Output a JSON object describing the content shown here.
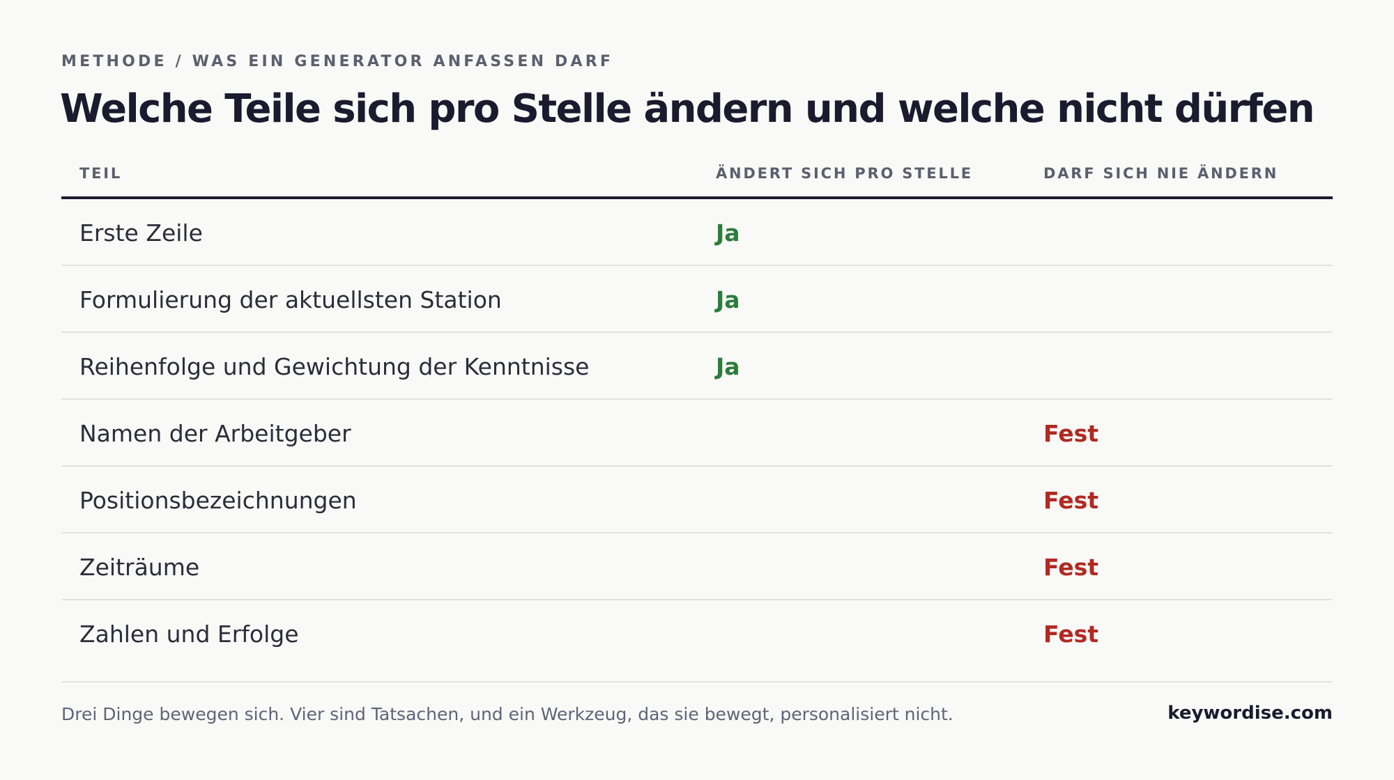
{
  "header": {
    "eyebrow": "METHODE / WAS EIN GENERATOR ANFASSEN DARF",
    "title": "Welche Teile sich pro Stelle ändern und welche nicht dürfen"
  },
  "table": {
    "columns": [
      "TEIL",
      "ÄNDERT SICH PRO STELLE",
      "DARF SICH NIE ÄNDERN"
    ],
    "rows": [
      {
        "part": "Erste Zeile",
        "changes": "Ja",
        "fixed": ""
      },
      {
        "part": "Formulierung der aktuellsten Station",
        "changes": "Ja",
        "fixed": ""
      },
      {
        "part": "Reihenfolge und Gewichtung der Kenntnisse",
        "changes": "Ja",
        "fixed": ""
      },
      {
        "part": "Namen der Arbeitgeber",
        "changes": "",
        "fixed": "Fest"
      },
      {
        "part": "Positionsbezeichnungen",
        "changes": "",
        "fixed": "Fest"
      },
      {
        "part": "Zeiträume",
        "changes": "",
        "fixed": "Fest"
      },
      {
        "part": "Zahlen und Erfolge",
        "changes": "",
        "fixed": "Fest"
      }
    ]
  },
  "footer": {
    "note": "Drei Dinge bewegen sich. Vier sind Tatsachen, und ein Werkzeug, das sie bewegt, personalisiert nicht.",
    "brand": "keywordise.com"
  },
  "colors": {
    "yes": "#2b7d3a",
    "fixed": "#b02a22",
    "heading": "#1b1a2e",
    "background": "#f9f9f7"
  }
}
